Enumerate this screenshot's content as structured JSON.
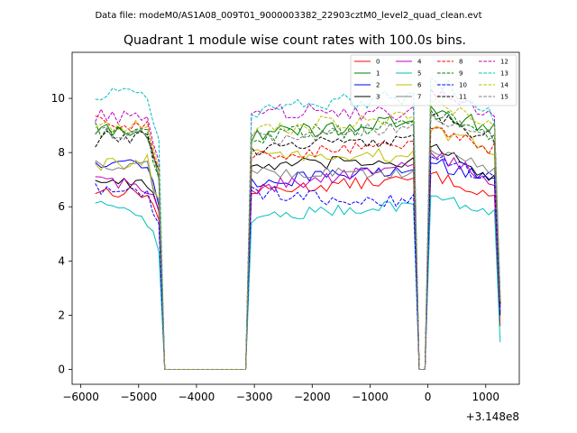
{
  "chart_data": {
    "type": "line",
    "suptitle": "Data file: modeM0/AS1A08_009T01_9000003382_22903cztM0_level2_quad_clean.evt",
    "title": "Quadrant 1 module wise count rates with 100.0s bins.",
    "xlabel": "",
    "ylabel": "",
    "offset_text": "+3.148e8",
    "xlim": [
      -6150,
      1580
    ],
    "ylim": [
      -0.55,
      11.7
    ],
    "xticks": [
      -6000,
      -5000,
      -4000,
      -3000,
      -2000,
      -1000,
      0,
      1000
    ],
    "xtick_labels": [
      "−6000",
      "−5000",
      "−4000",
      "−3000",
      "−2000",
      "−1000",
      "0",
      "1000"
    ],
    "yticks": [
      0,
      2,
      4,
      6,
      8,
      10
    ],
    "ytick_labels": [
      "0",
      "2",
      "4",
      "6",
      "8",
      "10"
    ],
    "legend_position": "top-right",
    "series": [
      {
        "name": "0",
        "color": "#ff0000",
        "dashed": false,
        "noise": 0.22,
        "p": [
          [
            -5750,
            6.6
          ],
          [
            -4850,
            6.5
          ],
          [
            -4650,
            5.5
          ],
          [
            -3000,
            6.6
          ],
          [
            -300,
            7.0
          ],
          [
            50,
            7.2
          ],
          [
            1150,
            6.4
          ]
        ]
      },
      {
        "name": "1",
        "color": "#008000",
        "dashed": false,
        "noise": 0.3,
        "p": [
          [
            -5750,
            8.8
          ],
          [
            -4850,
            8.7
          ],
          [
            -4650,
            7.0
          ],
          [
            -3000,
            8.7
          ],
          [
            -300,
            9.1
          ],
          [
            50,
            9.7
          ],
          [
            1150,
            8.8
          ]
        ]
      },
      {
        "name": "2",
        "color": "#0000ff",
        "dashed": false,
        "noise": 0.25,
        "p": [
          [
            -5750,
            7.7
          ],
          [
            -4850,
            7.6
          ],
          [
            -4650,
            6.0
          ],
          [
            -3000,
            6.9
          ],
          [
            -300,
            7.4
          ],
          [
            50,
            7.6
          ],
          [
            1150,
            7.1
          ]
        ]
      },
      {
        "name": "3",
        "color": "#000000",
        "dashed": false,
        "noise": 0.25,
        "p": [
          [
            -5750,
            7.0
          ],
          [
            -4850,
            6.9
          ],
          [
            -4650,
            5.8
          ],
          [
            -3000,
            7.5
          ],
          [
            -300,
            7.7
          ],
          [
            50,
            8.2
          ],
          [
            1150,
            7.0
          ]
        ]
      },
      {
        "name": "4",
        "color": "#bf00bf",
        "dashed": false,
        "noise": 0.25,
        "p": [
          [
            -5750,
            7.1
          ],
          [
            -4850,
            6.7
          ],
          [
            -4650,
            5.8
          ],
          [
            -3000,
            6.7
          ],
          [
            -300,
            7.5
          ],
          [
            50,
            8.0
          ],
          [
            1150,
            6.9
          ]
        ]
      },
      {
        "name": "5",
        "color": "#00bfbf",
        "dashed": false,
        "noise": 0.22,
        "p": [
          [
            -5750,
            6.1
          ],
          [
            -4850,
            5.5
          ],
          [
            -4650,
            4.3
          ],
          [
            -3000,
            5.6
          ],
          [
            -300,
            6.1
          ],
          [
            50,
            6.4
          ],
          [
            1150,
            5.8
          ]
        ]
      },
      {
        "name": "6",
        "color": "#bfbf00",
        "dashed": false,
        "noise": 0.25,
        "p": [
          [
            -5750,
            7.5
          ],
          [
            -4850,
            7.7
          ],
          [
            -4650,
            6.2
          ],
          [
            -3000,
            7.9
          ],
          [
            -300,
            7.9
          ],
          [
            50,
            8.8
          ],
          [
            1150,
            8.1
          ]
        ]
      },
      {
        "name": "7",
        "color": "#808080",
        "dashed": false,
        "noise": 0.25,
        "p": [
          [
            -5750,
            7.6
          ],
          [
            -4850,
            7.5
          ],
          [
            -4650,
            6.2
          ],
          [
            -3000,
            7.3
          ],
          [
            -300,
            7.2
          ],
          [
            50,
            8.1
          ],
          [
            1150,
            7.4
          ]
        ]
      },
      {
        "name": "8",
        "color": "#ff0000",
        "dashed": true,
        "noise": 0.25,
        "p": [
          [
            -5750,
            9.2
          ],
          [
            -4850,
            9.0
          ],
          [
            -4650,
            7.3
          ],
          [
            -3000,
            7.8
          ],
          [
            -300,
            8.4
          ],
          [
            50,
            8.9
          ],
          [
            1150,
            8.1
          ]
        ]
      },
      {
        "name": "9",
        "color": "#008000",
        "dashed": true,
        "noise": 0.3,
        "p": [
          [
            -5750,
            8.9
          ],
          [
            -4850,
            8.7
          ],
          [
            -4650,
            7.0
          ],
          [
            -3000,
            8.6
          ],
          [
            -300,
            9.0
          ],
          [
            50,
            9.6
          ],
          [
            1150,
            8.7
          ]
        ]
      },
      {
        "name": "10",
        "color": "#0000ff",
        "dashed": true,
        "noise": 0.3,
        "p": [
          [
            -5750,
            6.6
          ],
          [
            -4850,
            6.5
          ],
          [
            -4650,
            5.3
          ],
          [
            -3000,
            6.5
          ],
          [
            -300,
            6.2
          ],
          [
            50,
            7.9
          ],
          [
            1150,
            6.9
          ]
        ]
      },
      {
        "name": "11",
        "color": "#000000",
        "dashed": true,
        "noise": 0.3,
        "p": [
          [
            -5750,
            8.5
          ],
          [
            -4850,
            8.6
          ],
          [
            -4650,
            7.3
          ],
          [
            -3000,
            8.1
          ],
          [
            -300,
            8.6
          ],
          [
            50,
            9.4
          ],
          [
            1150,
            8.5
          ]
        ]
      },
      {
        "name": "12",
        "color": "#bf00bf",
        "dashed": true,
        "noise": 0.3,
        "p": [
          [
            -5750,
            9.4
          ],
          [
            -4850,
            9.3
          ],
          [
            -4650,
            7.6
          ],
          [
            -3000,
            9.5
          ],
          [
            -300,
            9.5
          ],
          [
            50,
            10.4
          ],
          [
            1150,
            9.2
          ]
        ]
      },
      {
        "name": "13",
        "color": "#00bfbf",
        "dashed": true,
        "noise": 0.32,
        "p": [
          [
            -5750,
            10.2
          ],
          [
            -4850,
            10.0
          ],
          [
            -4650,
            8.4
          ],
          [
            -3000,
            9.6
          ],
          [
            -300,
            10.1
          ],
          [
            50,
            10.8
          ],
          [
            1150,
            9.3
          ]
        ]
      },
      {
        "name": "14",
        "color": "#bfbf00",
        "dashed": true,
        "noise": 0.3,
        "p": [
          [
            -5750,
            9.1
          ],
          [
            -4850,
            9.0
          ],
          [
            -4650,
            7.5
          ],
          [
            -3000,
            8.9
          ],
          [
            -300,
            9.3
          ],
          [
            50,
            9.9
          ],
          [
            1150,
            8.9
          ]
        ]
      },
      {
        "name": "15",
        "color": "#808080",
        "dashed": true,
        "noise": 0.3,
        "p": [
          [
            -5750,
            8.8
          ],
          [
            -4850,
            8.6
          ],
          [
            -4650,
            7.2
          ],
          [
            -3000,
            8.5
          ],
          [
            -300,
            8.9
          ],
          [
            50,
            9.5
          ],
          [
            1150,
            8.6
          ]
        ]
      }
    ],
    "zero_intervals": [
      [
        -4550,
        -3150
      ],
      [
        -150,
        -50
      ]
    ],
    "start_x": -5750,
    "end_x": 1250,
    "end_values": [
      1.6,
      2.4,
      2.3,
      2.0,
      2.2,
      1.0,
      2.6,
      2.2,
      2.5,
      2.6,
      2.1,
      2.4,
      2.7,
      2.8,
      2.6,
      2.5
    ],
    "bin_width": 100
  }
}
